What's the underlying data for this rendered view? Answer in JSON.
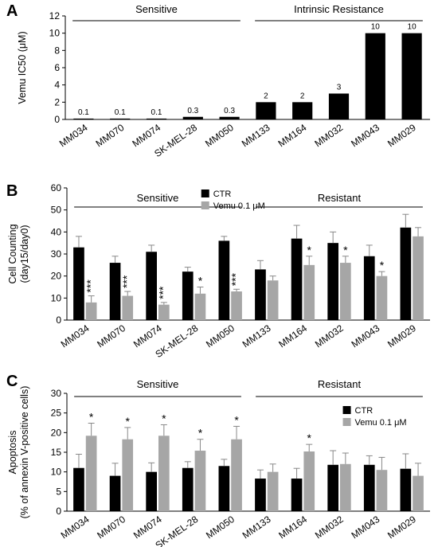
{
  "chart_data": [
    {
      "panel": "A",
      "type": "bar",
      "ylabel": "Vemu IC50 (μM)",
      "ylim": [
        0,
        12
      ],
      "yticks": [
        0,
        2,
        4,
        6,
        8,
        10,
        12
      ],
      "categories": [
        "MM034",
        "MM070",
        "MM074",
        "SK-MEL-28",
        "MM050",
        "MM133",
        "MM164",
        "MM032",
        "MM043",
        "MM029"
      ],
      "values": [
        0.1,
        0.1,
        0.1,
        0.3,
        0.3,
        2,
        2,
        3,
        10,
        10
      ],
      "data_labels": [
        "0.1",
        "0.1",
        "0.1",
        "0.3",
        "0.3",
        "2",
        "2",
        "3",
        "10",
        "10"
      ],
      "bar_color": "#000000",
      "groups": [
        {
          "label": "Sensitive",
          "from": 0,
          "to": 4
        },
        {
          "label": "Intrinsic Resistance",
          "from": 5,
          "to": 9
        }
      ]
    },
    {
      "panel": "B",
      "type": "bar",
      "ylabel_lines": [
        "Cell Counting",
        "(day15/day0)"
      ],
      "ylim": [
        0,
        60
      ],
      "yticks": [
        0,
        10,
        20,
        30,
        40,
        50,
        60
      ],
      "categories": [
        "MM034",
        "MM070",
        "MM074",
        "SK-MEL-28",
        "MM050",
        "MM133",
        "MM164",
        "MM032",
        "MM043",
        "MM029"
      ],
      "series": [
        {
          "name": "CTR",
          "color": "#000000",
          "values": [
            33,
            26,
            31,
            22,
            36,
            23,
            37,
            35,
            29,
            42
          ],
          "errors": [
            5,
            3,
            3,
            2,
            2,
            4,
            6,
            5,
            5,
            6
          ]
        },
        {
          "name": "Vemu 0.1 μM",
          "color": "#a6a6a6",
          "values": [
            8,
            11,
            7,
            12,
            13,
            18,
            25,
            26,
            20,
            38
          ],
          "errors": [
            3,
            2,
            1,
            3,
            1,
            2,
            4,
            3,
            2,
            4
          ]
        }
      ],
      "significance": [
        "***",
        "***",
        "***",
        "*",
        "***",
        "",
        "*",
        "*",
        "*",
        ""
      ],
      "groups": [
        {
          "label": "Sensitive",
          "from": 0,
          "to": 4
        },
        {
          "label": "Resistant",
          "from": 5,
          "to": 9
        }
      ],
      "legend": "top-left"
    },
    {
      "panel": "C",
      "type": "bar",
      "ylabel_lines": [
        "Apoptosis",
        "(% of annexin V-positive cells)"
      ],
      "ylim": [
        0,
        30
      ],
      "yticks": [
        0,
        5,
        10,
        15,
        20,
        25,
        30
      ],
      "categories": [
        "MM034",
        "MM070",
        "MM074",
        "SK-MEL-28",
        "MM050",
        "MM133",
        "MM164",
        "MM032",
        "MM043",
        "MM029"
      ],
      "series": [
        {
          "name": "CTR",
          "color": "#000000",
          "values": [
            11,
            9,
            10,
            11,
            11.5,
            8.3,
            8.3,
            11.8,
            11.8,
            10.8
          ],
          "errors": [
            3.5,
            3.2,
            2.3,
            1.6,
            1.7,
            2.2,
            2.6,
            3.6,
            2.3,
            3.8
          ]
        },
        {
          "name": "Vemu 0.1 μM",
          "color": "#a6a6a6",
          "values": [
            19.2,
            18.3,
            19.2,
            15.4,
            18.3,
            10,
            15.2,
            12,
            10.5,
            9
          ],
          "errors": [
            3.2,
            3,
            2.8,
            2.9,
            3.3,
            2,
            1.8,
            2.8,
            3.2,
            3.2
          ]
        }
      ],
      "significance": [
        "*",
        "*",
        "*",
        "*",
        "*",
        "",
        "*",
        "",
        "",
        ""
      ],
      "groups": [
        {
          "label": "Sensitive",
          "from": 0,
          "to": 4
        },
        {
          "label": "Resistant",
          "from": 5,
          "to": 9
        }
      ],
      "legend": "top-right"
    }
  ]
}
